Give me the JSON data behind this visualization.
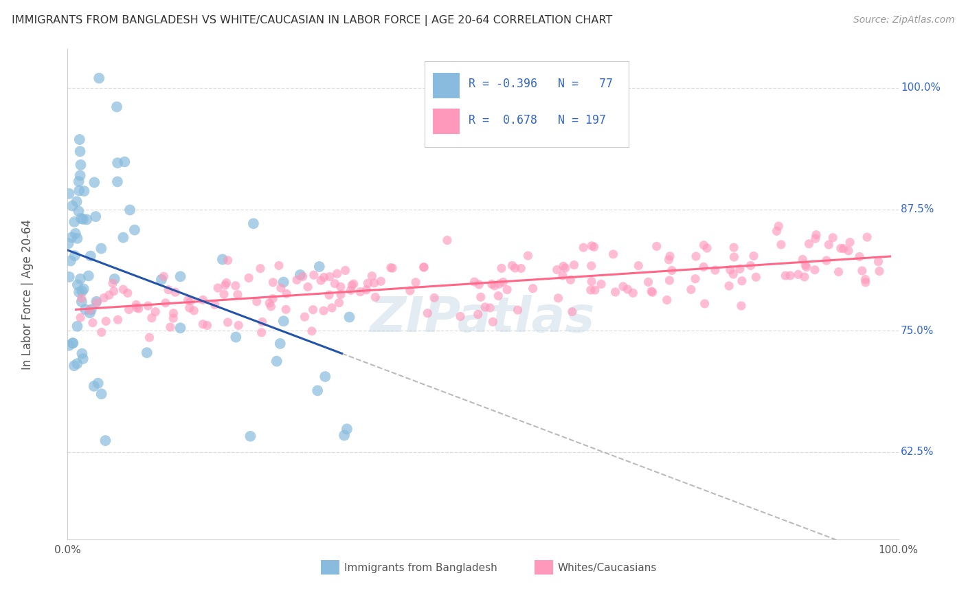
{
  "title": "IMMIGRANTS FROM BANGLADESH VS WHITE/CAUCASIAN IN LABOR FORCE | AGE 20-64 CORRELATION CHART",
  "source": "Source: ZipAtlas.com",
  "ylabel": "In Labor Force | Age 20-64",
  "ytick_labels": [
    "62.5%",
    "75.0%",
    "87.5%",
    "100.0%"
  ],
  "ytick_values": [
    0.625,
    0.75,
    0.875,
    1.0
  ],
  "xlim": [
    0.0,
    1.0
  ],
  "ylim": [
    0.535,
    1.04
  ],
  "legend_r_blue": "-0.396",
  "legend_n_blue": "77",
  "legend_r_pink": "0.678",
  "legend_n_pink": "197",
  "blue_color": "#88BBDD",
  "pink_color": "#FF99BB",
  "blue_line_color": "#2255AA",
  "pink_line_color": "#FF6688",
  "dash_color": "#BBBBBB",
  "watermark": "ZIPatlas",
  "legend_label_blue": "Immigrants from Bangladesh",
  "legend_label_pink": "Whites/Caucasians",
  "grid_color": "#DDDDDD",
  "spine_color": "#CCCCCC",
  "right_label_color": "#3366CC",
  "title_color": "#333333",
  "source_color": "#999999",
  "label_color": "#555555"
}
